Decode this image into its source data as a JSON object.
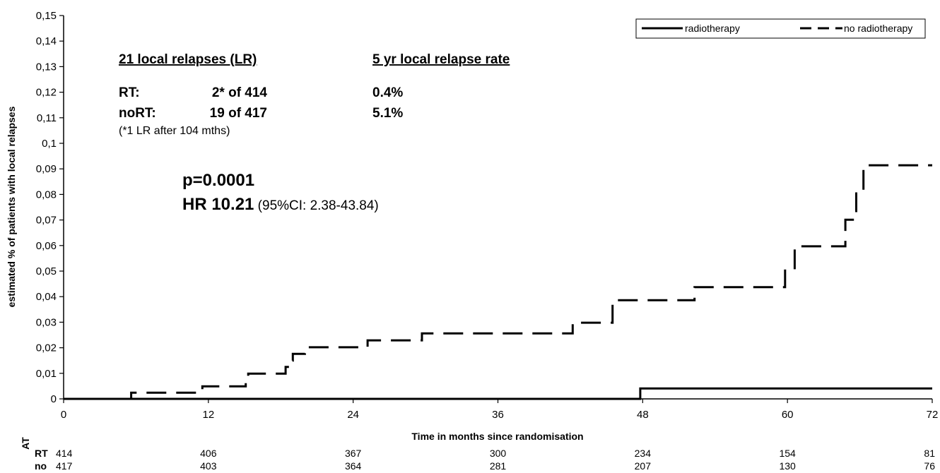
{
  "chart_data": {
    "type": "line",
    "title": "",
    "xlabel": "Time in months since randomisation",
    "ylabel": "estimated % of patients with local relapses",
    "xlim": [
      0,
      72
    ],
    "ylim": [
      0,
      0.15
    ],
    "x_ticks": [
      0,
      12,
      24,
      36,
      48,
      60,
      72
    ],
    "x_tick_labels": [
      "0",
      "12",
      "24",
      "36",
      "48",
      "60",
      "72"
    ],
    "y_ticks": [
      0,
      0.01,
      0.02,
      0.03,
      0.04,
      0.05,
      0.06,
      0.07,
      0.08,
      0.09,
      0.1,
      0.11,
      0.12,
      0.13,
      0.14,
      0.15
    ],
    "y_tick_labels": [
      "0",
      "0,01",
      "0,02",
      "0,03",
      "0,04",
      "0,05",
      "0,06",
      "0,07",
      "0,08",
      "0,09",
      "0,1",
      "0,11",
      "0,12",
      "0,13",
      "0,14",
      "0,15"
    ],
    "grid": false,
    "legend_position": "top-right",
    "series": [
      {
        "name": "radiotherapy",
        "style": "solid",
        "step_points": [
          [
            0,
            0
          ],
          [
            47.8,
            0
          ],
          [
            47.8,
            0.0041
          ],
          [
            72,
            0.0041
          ]
        ]
      },
      {
        "name": "no radiotherapy",
        "style": "dashed",
        "step_points": [
          [
            0,
            0
          ],
          [
            5.6,
            0
          ],
          [
            5.6,
            0.0024
          ],
          [
            11.5,
            0.0024
          ],
          [
            11.5,
            0.0049
          ],
          [
            15.1,
            0.0049
          ],
          [
            15.1,
            0.0074
          ],
          [
            15.3,
            0.0074
          ],
          [
            15.3,
            0.0099
          ],
          [
            18.4,
            0.0099
          ],
          [
            18.4,
            0.0125
          ],
          [
            18.7,
            0.0125
          ],
          [
            18.7,
            0.015
          ],
          [
            19.0,
            0.015
          ],
          [
            19.0,
            0.0176
          ],
          [
            20.0,
            0.0176
          ],
          [
            20.0,
            0.0202
          ],
          [
            25.2,
            0.0202
          ],
          [
            25.2,
            0.0229
          ],
          [
            29.7,
            0.0229
          ],
          [
            29.7,
            0.0256
          ],
          [
            42.2,
            0.0256
          ],
          [
            42.2,
            0.0298
          ],
          [
            45.5,
            0.0298
          ],
          [
            45.5,
            0.0386
          ],
          [
            52.3,
            0.0386
          ],
          [
            52.3,
            0.0437
          ],
          [
            59.8,
            0.0437
          ],
          [
            59.8,
            0.0507
          ],
          [
            60.6,
            0.0507
          ],
          [
            60.6,
            0.0597
          ],
          [
            64.8,
            0.0597
          ],
          [
            64.8,
            0.0701
          ],
          [
            65.7,
            0.0701
          ],
          [
            65.7,
            0.0804
          ],
          [
            66.3,
            0.0804
          ],
          [
            66.3,
            0.0914
          ],
          [
            72,
            0.0914
          ]
        ]
      }
    ]
  },
  "annotations": {
    "header_left": "21 local relapses (LR)",
    "header_right": "5 yr local relapse rate",
    "rt_label": "RT:",
    "rt_count": "2* of 414",
    "rt_rate": "0.4%",
    "nort_label": "noRT:",
    "nort_count": "19  of 417",
    "nort_rate": "5.1%",
    "footnote": "(*1 LR after 104 mths)",
    "p_value": "p=0.0001",
    "hr_bold": "HR 10.21",
    "hr_ci": " (95%CI: 2.38-43.84)"
  },
  "at_risk": {
    "title": "AT",
    "rows": [
      {
        "label": "RT",
        "values": [
          "414",
          "406",
          "367",
          "300",
          "234",
          "154",
          "81"
        ]
      },
      {
        "label": "no",
        "values": [
          "417",
          "403",
          "364",
          "281",
          "207",
          "130",
          "76"
        ]
      }
    ]
  }
}
